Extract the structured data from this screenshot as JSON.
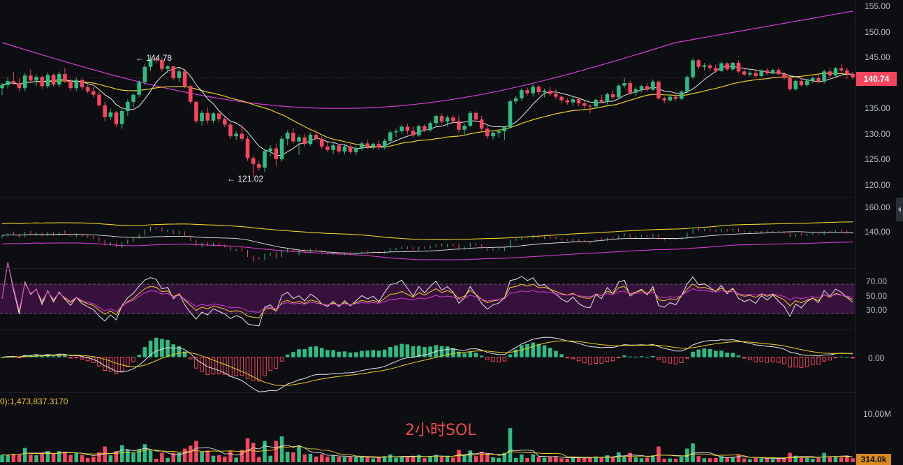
{
  "chart_data": {
    "type": "candlestick",
    "symbol_label": "2小时SOL",
    "price_pane": {
      "ylim": [
        117,
        156
      ],
      "ticks": [
        "155.00",
        "150.00",
        "145.00",
        "140.00",
        "135.00",
        "130.00",
        "125.00",
        "120.00"
      ],
      "current_price": "140.74",
      "high_marker": "144.78",
      "low_marker": "121.02",
      "candles": [
        [
          138.6,
          139.6,
          137.2,
          139.2
        ],
        [
          139.2,
          140.8,
          138.5,
          140.0
        ],
        [
          140.0,
          141.8,
          139.2,
          139.6
        ],
        [
          139.6,
          140.5,
          138.0,
          138.6
        ],
        [
          138.6,
          141.6,
          138.0,
          141.1
        ],
        [
          141.1,
          142.3,
          139.8,
          140.1
        ],
        [
          140.1,
          141.3,
          139.0,
          140.8
        ],
        [
          140.8,
          141.1,
          138.5,
          139.0
        ],
        [
          139.0,
          141.7,
          138.6,
          141.2
        ],
        [
          141.2,
          141.5,
          138.9,
          139.3
        ],
        [
          139.3,
          141.9,
          138.8,
          141.4
        ],
        [
          141.4,
          142.6,
          139.6,
          140.0
        ],
        [
          140.0,
          140.5,
          138.1,
          138.6
        ],
        [
          138.6,
          140.7,
          138.0,
          140.2
        ],
        [
          140.2,
          140.6,
          138.2,
          138.8
        ],
        [
          138.8,
          139.2,
          137.6,
          138.0
        ],
        [
          138.0,
          138.8,
          136.8,
          137.3
        ],
        [
          137.3,
          137.9,
          135.0,
          135.2
        ],
        [
          135.2,
          135.9,
          132.1,
          132.9
        ],
        [
          132.9,
          134.6,
          132.3,
          133.8
        ],
        [
          133.8,
          134.1,
          131.0,
          131.5
        ],
        [
          131.5,
          134.6,
          130.6,
          134.1
        ],
        [
          134.1,
          136.4,
          133.1,
          135.9
        ],
        [
          135.9,
          137.6,
          134.8,
          137.3
        ],
        [
          137.3,
          140.2,
          136.8,
          139.8
        ],
        [
          139.8,
          143.3,
          139.2,
          142.8
        ],
        [
          142.8,
          145.2,
          142.0,
          144.4
        ],
        [
          144.4,
          144.78,
          143.5,
          144.1
        ],
        [
          144.1,
          144.7,
          141.9,
          142.4
        ],
        [
          142.4,
          143.2,
          141.6,
          142.9
        ],
        [
          142.9,
          143.0,
          140.2,
          140.6
        ],
        [
          140.6,
          142.6,
          139.8,
          141.9
        ],
        [
          141.9,
          142.1,
          138.6,
          139.0
        ],
        [
          139.0,
          139.3,
          135.4,
          135.9
        ],
        [
          135.9,
          136.1,
          131.6,
          132.1
        ],
        [
          132.1,
          134.2,
          131.2,
          133.7
        ],
        [
          133.7,
          134.8,
          131.6,
          132.2
        ],
        [
          132.2,
          133.9,
          131.7,
          133.6
        ],
        [
          133.6,
          134.1,
          131.8,
          132.5
        ],
        [
          132.5,
          132.9,
          130.9,
          131.4
        ],
        [
          131.4,
          131.8,
          128.6,
          129.1
        ],
        [
          129.1,
          130.1,
          128.4,
          129.6
        ],
        [
          129.6,
          131.4,
          128.1,
          128.6
        ],
        [
          128.6,
          129.1,
          124.3,
          124.8
        ],
        [
          124.8,
          125.3,
          121.02,
          123.6
        ],
        [
          123.6,
          124.2,
          122.3,
          122.9
        ],
        [
          122.9,
          126.6,
          122.1,
          126.2
        ],
        [
          126.2,
          127.3,
          125.1,
          126.7
        ],
        [
          126.7,
          127.7,
          123.2,
          124.6
        ],
        [
          124.6,
          129.1,
          124.1,
          128.6
        ],
        [
          128.6,
          130.3,
          127.3,
          129.8
        ],
        [
          129.8,
          130.6,
          127.7,
          128.1
        ],
        [
          128.1,
          129.3,
          125.4,
          128.9
        ],
        [
          128.9,
          129.6,
          127.1,
          127.6
        ],
        [
          127.6,
          129.8,
          127.2,
          129.4
        ],
        [
          129.4,
          130.2,
          128.2,
          128.6
        ],
        [
          128.6,
          129.1,
          126.6,
          127.1
        ],
        [
          127.1,
          127.9,
          125.9,
          126.4
        ],
        [
          126.4,
          127.8,
          125.6,
          127.3
        ],
        [
          127.3,
          127.6,
          125.7,
          126.1
        ],
        [
          126.1,
          127.4,
          125.5,
          127.1
        ],
        [
          127.1,
          127.5,
          125.5,
          126.0
        ],
        [
          126.0,
          127.2,
          125.4,
          126.8
        ],
        [
          126.8,
          128.1,
          126.3,
          127.7
        ],
        [
          127.7,
          128.4,
          126.6,
          127.2
        ],
        [
          127.2,
          127.9,
          126.5,
          127.6
        ],
        [
          127.6,
          128.3,
          126.4,
          126.9
        ],
        [
          126.9,
          128.6,
          126.5,
          128.2
        ],
        [
          128.2,
          130.3,
          127.8,
          129.9
        ],
        [
          129.9,
          130.6,
          128.9,
          130.1
        ],
        [
          130.1,
          131.4,
          129.6,
          131.0
        ],
        [
          131.0,
          131.6,
          129.6,
          130.2
        ],
        [
          130.2,
          131.1,
          128.9,
          129.3
        ],
        [
          129.3,
          131.4,
          129.0,
          131.1
        ],
        [
          131.1,
          131.5,
          129.9,
          130.3
        ],
        [
          130.3,
          132.1,
          130.0,
          131.7
        ],
        [
          131.7,
          133.4,
          131.0,
          133.1
        ],
        [
          133.1,
          133.6,
          131.6,
          132.0
        ],
        [
          132.0,
          133.2,
          131.0,
          132.8
        ],
        [
          132.8,
          133.3,
          131.6,
          132.1
        ],
        [
          132.1,
          133.2,
          129.9,
          130.4
        ],
        [
          130.4,
          131.6,
          129.2,
          131.2
        ],
        [
          131.2,
          134.1,
          130.9,
          133.7
        ],
        [
          133.7,
          134.0,
          131.9,
          132.4
        ],
        [
          132.4,
          133.1,
          130.1,
          130.6
        ],
        [
          130.6,
          131.2,
          128.6,
          129.1
        ],
        [
          129.1,
          130.3,
          128.5,
          129.8
        ],
        [
          129.8,
          130.5,
          128.9,
          130.1
        ],
        [
          130.1,
          131.1,
          128.3,
          130.9
        ],
        [
          130.9,
          136.4,
          130.6,
          136.0
        ],
        [
          136.0,
          137.1,
          135.5,
          136.6
        ],
        [
          136.6,
          138.6,
          136.1,
          138.2
        ],
        [
          138.2,
          138.7,
          137.1,
          137.6
        ],
        [
          137.6,
          139.4,
          136.9,
          138.9
        ],
        [
          138.9,
          139.2,
          137.3,
          137.8
        ],
        [
          137.8,
          138.5,
          136.8,
          138.1
        ],
        [
          138.1,
          138.9,
          137.0,
          137.5
        ],
        [
          137.5,
          138.4,
          136.4,
          136.9
        ],
        [
          136.9,
          137.1,
          135.6,
          136.2
        ],
        [
          136.2,
          136.6,
          135.3,
          135.8
        ],
        [
          135.8,
          136.9,
          135.1,
          136.4
        ],
        [
          136.4,
          136.8,
          135.0,
          135.6
        ],
        [
          135.6,
          136.1,
          134.6,
          135.1
        ],
        [
          135.1,
          135.4,
          133.6,
          135.0
        ],
        [
          135.0,
          136.6,
          134.6,
          136.3
        ],
        [
          136.3,
          137.3,
          135.6,
          135.9
        ],
        [
          135.9,
          137.7,
          135.4,
          137.4
        ],
        [
          137.4,
          138.1,
          136.4,
          136.8
        ],
        [
          136.8,
          139.4,
          136.5,
          139.1
        ],
        [
          139.1,
          140.6,
          138.6,
          139.6
        ],
        [
          139.6,
          140.1,
          137.3,
          137.7
        ],
        [
          137.7,
          138.9,
          137.1,
          138.4
        ],
        [
          138.4,
          139.3,
          137.8,
          139.0
        ],
        [
          139.0,
          139.6,
          137.9,
          138.3
        ],
        [
          138.3,
          140.3,
          138.0,
          139.9
        ],
        [
          139.9,
          140.1,
          136.3,
          136.6
        ],
        [
          136.6,
          136.9,
          135.6,
          136.2
        ],
        [
          136.2,
          137.3,
          135.9,
          136.9
        ],
        [
          136.9,
          137.4,
          136.1,
          136.5
        ],
        [
          136.5,
          138.2,
          136.2,
          137.9
        ],
        [
          137.9,
          141.1,
          137.6,
          140.8
        ],
        [
          140.8,
          144.6,
          140.4,
          144.1
        ],
        [
          144.1,
          144.4,
          142.3,
          142.8
        ],
        [
          142.8,
          143.6,
          142.1,
          143.1
        ],
        [
          143.1,
          143.5,
          142.0,
          142.6
        ],
        [
          142.6,
          143.3,
          141.7,
          142.0
        ],
        [
          142.0,
          143.9,
          141.8,
          143.5
        ],
        [
          143.5,
          143.7,
          142.0,
          142.3
        ],
        [
          142.3,
          143.8,
          142.0,
          143.6
        ],
        [
          143.6,
          144.1,
          141.6,
          141.9
        ],
        [
          141.9,
          142.4,
          141.0,
          141.3
        ],
        [
          141.3,
          142.0,
          140.9,
          141.6
        ],
        [
          141.6,
          142.2,
          140.6,
          141.0
        ],
        [
          141.0,
          142.3,
          140.8,
          142.1
        ],
        [
          142.1,
          142.6,
          141.2,
          141.5
        ],
        [
          141.5,
          142.4,
          141.3,
          142.2
        ],
        [
          142.2,
          142.6,
          141.1,
          141.4
        ],
        [
          141.4,
          141.9,
          140.3,
          140.6
        ],
        [
          140.6,
          140.9,
          138.1,
          138.4
        ],
        [
          138.4,
          140.3,
          138.1,
          140.0
        ],
        [
          140.0,
          140.6,
          138.9,
          139.2
        ],
        [
          139.2,
          140.4,
          138.8,
          140.1
        ],
        [
          140.1,
          140.9,
          139.6,
          140.6
        ],
        [
          140.6,
          141.4,
          139.6,
          139.9
        ],
        [
          139.9,
          142.3,
          139.5,
          141.9
        ],
        [
          141.9,
          142.6,
          140.6,
          141.1
        ],
        [
          141.1,
          142.8,
          140.9,
          142.5
        ],
        [
          142.5,
          143.4,
          141.6,
          142.1
        ],
        [
          142.1,
          142.6,
          140.4,
          141.4
        ],
        [
          141.4,
          141.8,
          140.3,
          140.74
        ]
      ]
    },
    "mini_pane": {
      "ticks": [
        "160.00",
        "140.00"
      ],
      "range": [
        118,
        164
      ]
    },
    "rsi_pane": {
      "ticks": [
        "70.00",
        "50.00",
        "30.00"
      ],
      "band": [
        30,
        70
      ],
      "range": [
        10,
        90
      ]
    },
    "macd_pane": {
      "ticks": [
        "0.00"
      ],
      "range": [
        -3.6,
        2.8
      ]
    },
    "volume_pane": {
      "ticks": [
        "10.00M"
      ],
      "readout": "0):1,473,837.3170",
      "current_volume": "314.0k",
      "max": 10000000
    },
    "colors": {
      "up": "#2ebd85",
      "down": "#f6465d",
      "ma_fast": "#e6e6e6",
      "ma_mid": "#f0d020",
      "ma_slow": "#d63ad6",
      "rsi_band": "#3a1240",
      "background": "#0d0e11"
    }
  }
}
